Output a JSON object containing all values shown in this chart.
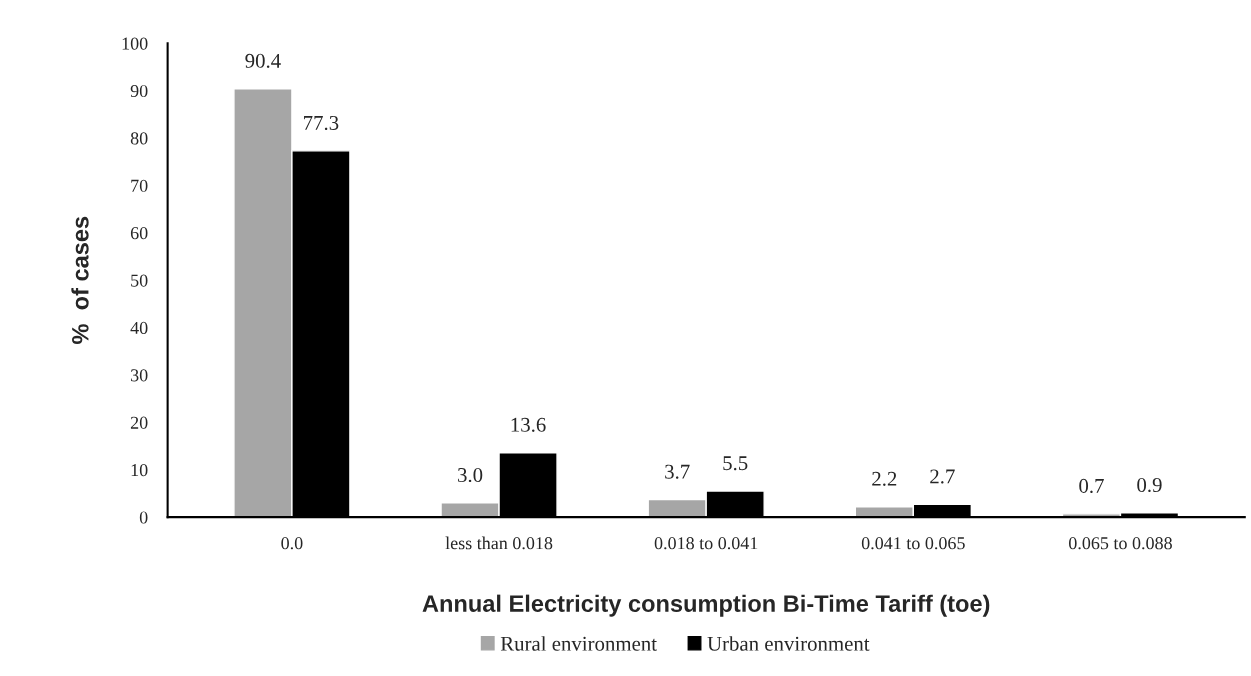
{
  "chart_data": {
    "type": "bar",
    "xlabel": "Annual Electricity consumption Bi-Time Tariff (toe)",
    "ylabel": "%  of cases",
    "categories": [
      "0.0",
      "less than 0.018",
      "0.018 to 0.041",
      "0.041 to 0.065",
      "0.065 to 0.088"
    ],
    "series": [
      {
        "name": "Rural environment",
        "color": "#a6a6a6",
        "values": [
          90.4,
          3.0,
          3.7,
          2.2,
          0.7
        ],
        "value_labels": [
          "90.4",
          "3.0",
          "3.7",
          "2.2",
          "0.7"
        ]
      },
      {
        "name": "Urban environment",
        "color": "#000000",
        "values": [
          77.3,
          13.6,
          5.5,
          2.7,
          0.9
        ],
        "value_labels": [
          "77.3",
          "13.6",
          "5.5",
          "2.7",
          "0.9"
        ]
      }
    ],
    "ylim": [
      0,
      100
    ],
    "yticks": [
      0,
      10,
      20,
      30,
      40,
      50,
      60,
      70,
      80,
      90,
      100
    ],
    "grid": false,
    "legend": "bottom"
  }
}
